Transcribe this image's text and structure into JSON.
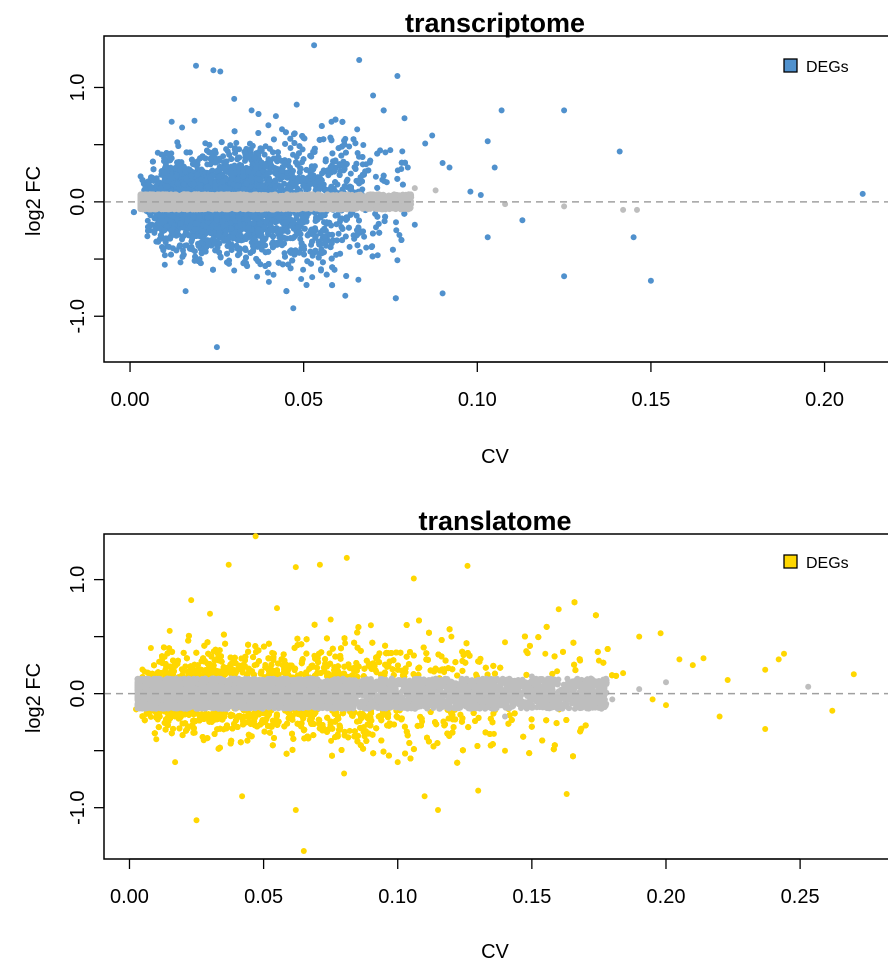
{
  "chart_data": [
    {
      "type": "scatter",
      "title": "transcriptome",
      "xlabel": "CV",
      "ylabel": "log2 FC",
      "xlim": [
        -0.0075,
        0.22
      ],
      "ylim": [
        -1.4,
        1.45
      ],
      "x_ticks": [
        "0.00",
        "0.05",
        "0.10",
        "0.15",
        "0.20"
      ],
      "y_ticks": [
        "-1.0",
        "0.0",
        "1.0"
      ],
      "reference_line_y": 0,
      "grid": false,
      "legend": {
        "position": "top-right",
        "entries": [
          {
            "name": "DEGs",
            "color": "#5091cd"
          }
        ]
      },
      "colors": {
        "deg": "#5091cd",
        "non_deg": "#bebebe",
        "refline": "#a0a0a0"
      },
      "series": [
        {
          "name": "DEGs",
          "role": "deg",
          "distribution": "dense cloud at CV 0.00-0.07 with |log2FC| above about 0.07, spanning about -0.95 to 1.05",
          "points": [
            [
              0.019,
              1.19
            ],
            [
              0.024,
              1.15
            ],
            [
              0.026,
              1.14
            ],
            [
              0.053,
              1.37
            ],
            [
              0.066,
              1.24
            ],
            [
              0.077,
              1.1
            ],
            [
              0.07,
              0.93
            ],
            [
              0.107,
              0.8
            ],
            [
              0.125,
              0.8
            ],
            [
              0.141,
              0.44
            ],
            [
              0.211,
              0.07
            ],
            [
              0.085,
              0.51
            ],
            [
              0.087,
              0.58
            ],
            [
              0.09,
              0.34
            ],
            [
              0.092,
              0.3
            ],
            [
              0.098,
              0.09
            ],
            [
              0.101,
              0.06
            ],
            [
              0.103,
              0.53
            ],
            [
              0.105,
              0.3
            ],
            [
              0.103,
              -0.31
            ],
            [
              0.113,
              -0.16
            ],
            [
              0.125,
              -0.65
            ],
            [
              0.145,
              -0.31
            ],
            [
              0.15,
              -0.69
            ],
            [
              0.09,
              -0.8
            ],
            [
              0.077,
              -0.51
            ],
            [
              0.062,
              -0.82
            ],
            [
              0.047,
              -0.93
            ],
            [
              0.025,
              -1.27
            ],
            [
              0.016,
              -0.78
            ],
            [
              0.01,
              -0.55
            ],
            [
              0.005,
              -0.3
            ],
            [
              0.008,
              0.43
            ],
            [
              0.012,
              0.7
            ],
            [
              0.015,
              0.65
            ],
            [
              0.03,
              0.9
            ],
            [
              0.035,
              0.8
            ],
            [
              0.042,
              0.75
            ],
            [
              0.048,
              0.85
            ],
            [
              0.058,
              0.7
            ],
            [
              0.062,
              0.55
            ],
            [
              0.072,
              0.45
            ],
            [
              0.08,
              0.3
            ],
            [
              0.082,
              -0.2
            ],
            [
              0.068,
              -0.4
            ],
            [
              0.055,
              -0.6
            ],
            [
              0.04,
              -0.7
            ],
            [
              0.03,
              -0.6
            ],
            [
              0.02,
              -0.5
            ]
          ]
        },
        {
          "name": "non-DEGs",
          "role": "non-deg",
          "distribution": "thin band around log2FC 0 from CV 0.00 to about 0.08",
          "points": [
            [
              0.064,
              0.05
            ],
            [
              0.07,
              0.03
            ],
            [
              0.075,
              -0.04
            ],
            [
              0.08,
              0.02
            ],
            [
              0.082,
              0.12
            ],
            [
              0.088,
              0.1
            ],
            [
              0.078,
              -0.05
            ],
            [
              0.108,
              -0.02
            ],
            [
              0.125,
              -0.04
            ],
            [
              0.142,
              -0.07
            ],
            [
              0.146,
              -0.07
            ]
          ]
        }
      ]
    },
    {
      "type": "scatter",
      "title": "translatome",
      "xlabel": "CV",
      "ylabel": "log2 FC",
      "xlim": [
        -0.0095,
        0.285
      ],
      "ylim": [
        -1.45,
        1.4
      ],
      "x_ticks": [
        "0.00",
        "0.05",
        "0.10",
        "0.15",
        "0.20",
        "0.25"
      ],
      "y_ticks": [
        "-1.0",
        "0.0",
        "1.0"
      ],
      "reference_line_y": 0,
      "grid": false,
      "legend": {
        "position": "top-right",
        "entries": [
          {
            "name": "DEGs",
            "color": "#ffd700"
          }
        ]
      },
      "colors": {
        "deg": "#ffd700",
        "non_deg": "#bebebe",
        "refline": "#a0a0a0"
      },
      "series": [
        {
          "name": "DEGs",
          "role": "deg",
          "distribution": "dense cloud at CV 0.005-0.165 with |log2FC| above about 0.15, spanning about -0.95 to 0.95",
          "points": [
            [
              0.047,
              1.38
            ],
            [
              0.037,
              1.13
            ],
            [
              0.062,
              1.11
            ],
            [
              0.071,
              1.13
            ],
            [
              0.081,
              1.19
            ],
            [
              0.106,
              1.01
            ],
            [
              0.126,
              1.12
            ],
            [
              0.023,
              0.82
            ],
            [
              0.16,
              0.74
            ],
            [
              0.168,
              0.29
            ],
            [
              0.175,
              0.29
            ],
            [
              0.184,
              0.18
            ],
            [
              0.19,
              0.5
            ],
            [
              0.198,
              0.53
            ],
            [
              0.205,
              0.3
            ],
            [
              0.21,
              0.25
            ],
            [
              0.214,
              0.31
            ],
            [
              0.223,
              0.12
            ],
            [
              0.237,
              0.21
            ],
            [
              0.242,
              0.3
            ],
            [
              0.244,
              0.35
            ],
            [
              0.262,
              -0.15
            ],
            [
              0.27,
              0.17
            ],
            [
              0.237,
              -0.31
            ],
            [
              0.22,
              -0.2
            ],
            [
              0.2,
              -0.1
            ],
            [
              0.195,
              -0.05
            ],
            [
              0.163,
              -0.88
            ],
            [
              0.115,
              -1.02
            ],
            [
              0.13,
              -0.85
            ],
            [
              0.11,
              -0.9
            ],
            [
              0.065,
              -1.38
            ],
            [
              0.062,
              -1.02
            ],
            [
              0.025,
              -1.11
            ],
            [
              0.042,
              -0.9
            ],
            [
              0.017,
              -0.6
            ],
            [
              0.01,
              -0.4
            ],
            [
              0.005,
              -0.2
            ],
            [
              0.008,
              0.4
            ],
            [
              0.015,
              0.55
            ],
            [
              0.03,
              0.7
            ],
            [
              0.055,
              0.75
            ],
            [
              0.075,
              0.65
            ],
            [
              0.09,
              0.6
            ],
            [
              0.12,
              0.5
            ],
            [
              0.14,
              0.45
            ],
            [
              0.155,
              0.35
            ],
            [
              0.1,
              -0.6
            ],
            [
              0.08,
              -0.7
            ],
            [
              0.14,
              -0.5
            ]
          ]
        },
        {
          "name": "non-DEGs",
          "role": "non-deg",
          "distribution": "band around log2FC 0 from CV 0.005 to about 0.175",
          "points": [
            [
              0.135,
              0.05
            ],
            [
              0.15,
              -0.1
            ],
            [
              0.16,
              0.02
            ],
            [
              0.17,
              0.1
            ],
            [
              0.18,
              -0.05
            ],
            [
              0.19,
              0.04
            ],
            [
              0.2,
              0.1
            ],
            [
              0.253,
              0.06
            ],
            [
              0.14,
              -0.2
            ],
            [
              0.15,
              0.15
            ]
          ]
        }
      ]
    }
  ]
}
